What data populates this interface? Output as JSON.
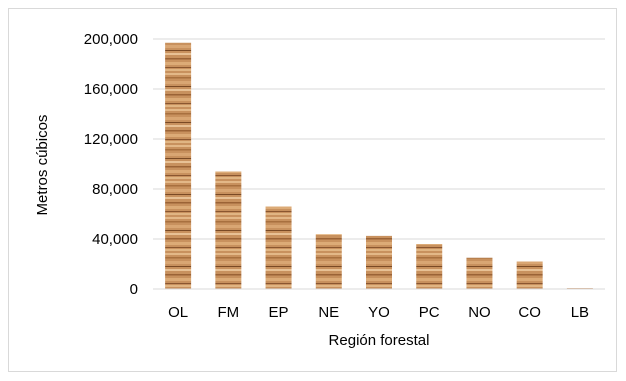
{
  "chart_data": {
    "type": "bar",
    "categories": [
      "OL",
      "FM",
      "EP",
      "NE",
      "YO",
      "PC",
      "NO",
      "CO",
      "LB"
    ],
    "values": [
      197000,
      94000,
      66000,
      44000,
      42500,
      36000,
      25000,
      22000,
      700
    ],
    "title": "",
    "xlabel": "Región forestal",
    "ylabel": "Metros cúbicos",
    "ylim": [
      0,
      200000
    ],
    "yticks": [
      0,
      40000,
      80000,
      120000,
      160000,
      200000
    ],
    "ytick_labels": [
      "0",
      "40,000",
      "80,000",
      "120,000",
      "160,000",
      "200,000"
    ],
    "grid": true,
    "legend": "none",
    "bar_fill": "wood-grain texture",
    "colors": {
      "grid": "#d9d9d9",
      "wood_base": "#c8915e",
      "wood_light": "#e3b888",
      "wood_dark": "#7a4a25"
    }
  }
}
